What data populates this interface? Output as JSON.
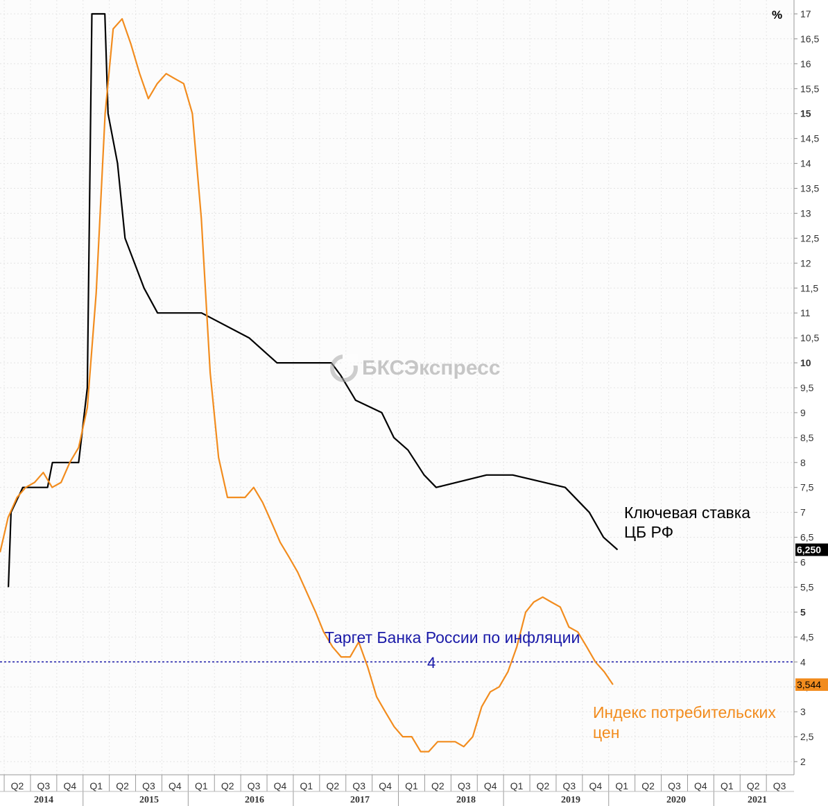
{
  "chart_data": {
    "type": "line",
    "unit": "%",
    "ylim": [
      2,
      17
    ],
    "yticks": [
      "2",
      "2,5",
      "3",
      "3,5",
      "4",
      "4,5",
      "5",
      "5,5",
      "6",
      "6,5",
      "7",
      "7,5",
      "8",
      "8,5",
      "9",
      "9,5",
      "10",
      "10,5",
      "11",
      "11,5",
      "12",
      "12,5",
      "13",
      "13,5",
      "14",
      "14,5",
      "15",
      "15,5",
      "16",
      "16,5",
      "17"
    ],
    "bold_yticks": [
      "5",
      "10",
      "15"
    ],
    "quarter_ticks": [
      "Q2",
      "Q3",
      "Q4",
      "Q1",
      "Q2",
      "Q3",
      "Q4",
      "Q1",
      "Q2",
      "Q3",
      "Q4",
      "Q1",
      "Q2",
      "Q3",
      "Q4",
      "Q1",
      "Q2",
      "Q3",
      "Q4",
      "Q1",
      "Q2",
      "Q3",
      "Q4",
      "Q1",
      "Q2",
      "Q3",
      "Q4",
      "Q1",
      "Q2",
      "Q3"
    ],
    "year_labels": [
      "2014",
      "2015",
      "2016",
      "2017",
      "2018",
      "2019",
      "2020",
      "2021"
    ],
    "series": [
      {
        "name": "Ключевая ставка ЦБ РФ",
        "color": "#000000",
        "last_value_label": "6,250",
        "points": [
          [
            "2014-03-01",
            5.5
          ],
          [
            "2014-03-10",
            7.0
          ],
          [
            "2014-04-20",
            7.5
          ],
          [
            "2014-07-15",
            7.5
          ],
          [
            "2014-08-01",
            8.0
          ],
          [
            "2014-10-31",
            8.0
          ],
          [
            "2014-11-30",
            9.5
          ],
          [
            "2014-12-16",
            17.0
          ],
          [
            "2015-01-30",
            17.0
          ],
          [
            "2015-02-10",
            15.0
          ],
          [
            "2015-03-15",
            14.0
          ],
          [
            "2015-04-10",
            12.5
          ],
          [
            "2015-06-15",
            11.5
          ],
          [
            "2015-08-01",
            11.0
          ],
          [
            "2016-01-01",
            11.0
          ],
          [
            "2016-06-14",
            10.5
          ],
          [
            "2016-09-19",
            10.0
          ],
          [
            "2017-03-27",
            10.0
          ],
          [
            "2017-04-28",
            9.75
          ],
          [
            "2017-06-19",
            9.25
          ],
          [
            "2017-09-18",
            9.0
          ],
          [
            "2017-10-30",
            8.5
          ],
          [
            "2017-12-18",
            8.25
          ],
          [
            "2018-02-12",
            7.75
          ],
          [
            "2018-03-26",
            7.5
          ],
          [
            "2018-09-17",
            7.75
          ],
          [
            "2018-12-17",
            7.75
          ],
          [
            "2019-06-17",
            7.5
          ],
          [
            "2019-07-29",
            7.25
          ],
          [
            "2019-09-09",
            7.0
          ],
          [
            "2019-10-28",
            6.5
          ],
          [
            "2019-12-16",
            6.25
          ]
        ]
      },
      {
        "name": "Индекс потребительских цен",
        "color": "#f28c1e",
        "last_value_label": "3,544",
        "points": [
          [
            "2014-01-31",
            6.2
          ],
          [
            "2014-02-28",
            6.9
          ],
          [
            "2014-03-31",
            7.3
          ],
          [
            "2014-04-30",
            7.5
          ],
          [
            "2014-05-31",
            7.6
          ],
          [
            "2014-06-30",
            7.8
          ],
          [
            "2014-07-31",
            7.5
          ],
          [
            "2014-08-31",
            7.6
          ],
          [
            "2014-09-30",
            8.0
          ],
          [
            "2014-10-31",
            8.3
          ],
          [
            "2014-11-30",
            9.1
          ],
          [
            "2014-12-31",
            11.4
          ],
          [
            "2015-01-31",
            15.0
          ],
          [
            "2015-02-28",
            16.7
          ],
          [
            "2015-03-31",
            16.9
          ],
          [
            "2015-04-30",
            16.4
          ],
          [
            "2015-05-31",
            15.8
          ],
          [
            "2015-06-30",
            15.3
          ],
          [
            "2015-07-31",
            15.6
          ],
          [
            "2015-08-31",
            15.8
          ],
          [
            "2015-09-30",
            15.7
          ],
          [
            "2015-10-31",
            15.6
          ],
          [
            "2015-11-30",
            15.0
          ],
          [
            "2015-12-31",
            12.9
          ],
          [
            "2016-01-31",
            9.8
          ],
          [
            "2016-02-29",
            8.1
          ],
          [
            "2016-03-31",
            7.3
          ],
          [
            "2016-04-30",
            7.3
          ],
          [
            "2016-05-31",
            7.3
          ],
          [
            "2016-06-30",
            7.5
          ],
          [
            "2016-07-31",
            7.2
          ],
          [
            "2016-08-31",
            6.8
          ],
          [
            "2016-09-30",
            6.4
          ],
          [
            "2016-10-31",
            6.1
          ],
          [
            "2016-11-30",
            5.8
          ],
          [
            "2016-12-31",
            5.4
          ],
          [
            "2017-01-31",
            5.0
          ],
          [
            "2017-02-28",
            4.6
          ],
          [
            "2017-03-31",
            4.3
          ],
          [
            "2017-04-30",
            4.1
          ],
          [
            "2017-05-31",
            4.1
          ],
          [
            "2017-06-30",
            4.4
          ],
          [
            "2017-07-31",
            3.9
          ],
          [
            "2017-08-31",
            3.3
          ],
          [
            "2017-09-30",
            3.0
          ],
          [
            "2017-10-31",
            2.7
          ],
          [
            "2017-11-30",
            2.5
          ],
          [
            "2017-12-31",
            2.5
          ],
          [
            "2018-01-31",
            2.2
          ],
          [
            "2018-02-28",
            2.2
          ],
          [
            "2018-03-31",
            2.4
          ],
          [
            "2018-04-30",
            2.4
          ],
          [
            "2018-05-31",
            2.4
          ],
          [
            "2018-06-30",
            2.3
          ],
          [
            "2018-07-31",
            2.5
          ],
          [
            "2018-08-31",
            3.1
          ],
          [
            "2018-09-30",
            3.4
          ],
          [
            "2018-10-31",
            3.5
          ],
          [
            "2018-11-30",
            3.8
          ],
          [
            "2018-12-31",
            4.3
          ],
          [
            "2019-01-31",
            5.0
          ],
          [
            "2019-02-28",
            5.2
          ],
          [
            "2019-03-31",
            5.3
          ],
          [
            "2019-04-30",
            5.2
          ],
          [
            "2019-05-31",
            5.1
          ],
          [
            "2019-06-30",
            4.7
          ],
          [
            "2019-07-31",
            4.6
          ],
          [
            "2019-08-31",
            4.3
          ],
          [
            "2019-09-30",
            4.0
          ],
          [
            "2019-10-31",
            3.8
          ],
          [
            "2019-11-30",
            3.544
          ]
        ]
      }
    ],
    "target_line": {
      "value": 4,
      "color": "#1a1aa8",
      "label": "Таргет Банка России по инфляции",
      "value_label": "4"
    },
    "annotations": {
      "key_rate_line1": "Ключевая ставка",
      "key_rate_line2": "ЦБ РФ",
      "cpi_line1": "Индекс потребительских",
      "cpi_line2": "цен"
    },
    "grid": true
  },
  "watermark": "БКСЭкспресс"
}
